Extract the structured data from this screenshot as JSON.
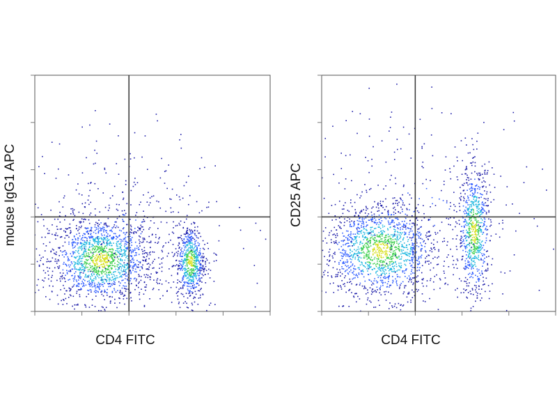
{
  "chart_data": [
    {
      "type": "density",
      "x_label": "CD4 FITC",
      "y_label": "mouse IgG1 APC",
      "xlim": [
        0,
        5
      ],
      "ylim": [
        0,
        5
      ],
      "xticks": [
        0,
        1,
        2,
        3,
        4,
        5
      ],
      "yticks": [
        0,
        1,
        2,
        3,
        4,
        5
      ],
      "gate": {
        "x": 2.0,
        "y": 2.0
      },
      "populations": [
        {
          "x": 1.4,
          "y": 1.1,
          "sx": 0.55,
          "sy": 0.45,
          "share": 0.6
        },
        {
          "x": 3.3,
          "y": 1.05,
          "sx": 0.15,
          "sy": 0.4,
          "share": 0.25
        },
        {
          "x": 1.8,
          "y": 1.8,
          "sx": 1.2,
          "sy": 1.0,
          "share": 0.15
        }
      ]
    },
    {
      "type": "density",
      "x_label": "CD4 FITC",
      "y_label": "CD25 APC",
      "xlim": [
        0,
        5
      ],
      "ylim": [
        0,
        5
      ],
      "xticks": [
        0,
        1,
        2,
        3,
        4,
        5
      ],
      "yticks": [
        0,
        1,
        2,
        3,
        4,
        5
      ],
      "gate": {
        "x": 2.0,
        "y": 2.0
      },
      "populations": [
        {
          "x": 1.25,
          "y": 1.3,
          "sx": 0.6,
          "sy": 0.5,
          "share": 0.6
        },
        {
          "x": 3.25,
          "y": 1.7,
          "sx": 0.17,
          "sy": 0.7,
          "share": 0.3
        },
        {
          "x": 2.2,
          "y": 2.2,
          "sx": 1.3,
          "sy": 1.2,
          "share": 0.1
        }
      ]
    }
  ]
}
